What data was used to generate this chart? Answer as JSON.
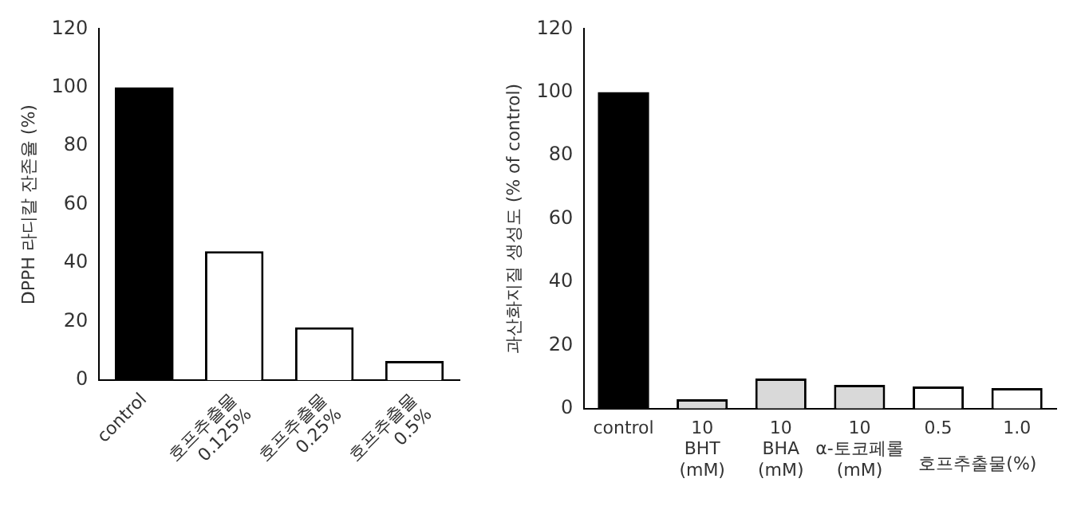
{
  "chart_data": [
    {
      "type": "bar",
      "ylabel": "DPPH 라디칼 잔존율 (%)",
      "categories": [
        "control",
        "호프추출물 0.125%",
        "호프추출물 0.25%",
        "호프추출물 0.5%"
      ],
      "values": [
        100,
        44,
        18,
        6.5
      ],
      "colors": [
        "#000000",
        "#ffffff",
        "#ffffff",
        "#ffffff"
      ],
      "ylim": [
        0,
        120
      ],
      "yticks": [
        0,
        20,
        40,
        60,
        80,
        100,
        120
      ]
    },
    {
      "type": "bar",
      "ylabel": "과산화지질 생성도 (% of control)",
      "categories": [
        "control",
        "10 BHT (mM)",
        "10 BHA (mM)",
        "10 α-토코페롤 (mM)",
        "0.5",
        "1.0"
      ],
      "values": [
        100,
        3,
        9.5,
        7.5,
        7,
        6.5
      ],
      "colors": [
        "#000000",
        "#d9d9d9",
        "#d9d9d9",
        "#d9d9d9",
        "#ffffff",
        "#ffffff"
      ],
      "ylim": [
        0,
        120
      ],
      "yticks": [
        0,
        20,
        40,
        60,
        80,
        100,
        120
      ],
      "annotations": [
        "호프추출물(%)"
      ]
    }
  ]
}
